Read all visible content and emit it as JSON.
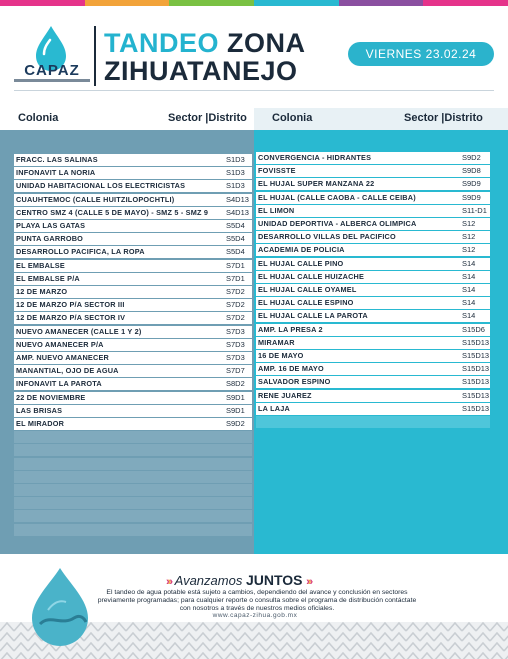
{
  "header": {
    "logo_text": "CAPAZ",
    "title_part1": "TANDEO",
    "title_part2": "ZONA",
    "title_line2": "ZIHUATANEJO",
    "date": "VIERNES 23.02.24"
  },
  "table": {
    "left_headers": {
      "colonia": "Colonia",
      "sector": "Sector |Distrito"
    },
    "right_headers": {
      "colonia": "Colonia",
      "sector": "Sector |Distrito"
    },
    "left_rows": [
      {
        "colonia": "FRACC. LAS SALINAS",
        "sector": "S1D3"
      },
      {
        "colonia": "INFONAVIT LA NORIA",
        "sector": "S1D3"
      },
      {
        "colonia": "UNIDAD HABITACIONAL LOS ELECTRICISTAS",
        "sector": "S1D3"
      },
      {
        "colonia": "CUAUHTEMOC (CALLE HUITZILOPOCHTLI)",
        "sector": "S4D13"
      },
      {
        "colonia": "CENTRO SMZ 4 (CALLE 5 DE MAYO) - SMZ 5 - SMZ 9",
        "sector": "S4D13"
      },
      {
        "colonia": "PLAYA LAS GATAS",
        "sector": "S5D4"
      },
      {
        "colonia": "PUNTA GARROBO",
        "sector": "S5D4"
      },
      {
        "colonia": "DESARROLLO PACIFICA, LA ROPA",
        "sector": "S5D4"
      },
      {
        "colonia": "EL EMBALSE",
        "sector": "S7D1"
      },
      {
        "colonia": "EL EMBALSE P/A",
        "sector": "S7D1"
      },
      {
        "colonia": "12 DE MARZO",
        "sector": "S7D2"
      },
      {
        "colonia": "12 DE MARZO P/A SECTOR III",
        "sector": "S7D2"
      },
      {
        "colonia": "12 DE MARZO P/A SECTOR IV",
        "sector": "S7D2"
      },
      {
        "colonia": "NUEVO AMANECER (CALLE 1 Y 2)",
        "sector": "S7D3"
      },
      {
        "colonia": "NUEVO AMANECER P/A",
        "sector": "S7D3"
      },
      {
        "colonia": "AMP. NUEVO AMANECER",
        "sector": "S7D3"
      },
      {
        "colonia": "MANANTIAL, OJO DE AGUA",
        "sector": "S7D7"
      },
      {
        "colonia": "INFONAVIT LA PAROTA",
        "sector": "S8D2"
      },
      {
        "colonia": "22 DE NOVIEMBRE",
        "sector": "S9D1"
      },
      {
        "colonia": "LAS BRISAS",
        "sector": "S9D1"
      },
      {
        "colonia": "EL MIRADOR",
        "sector": "S9D2"
      }
    ],
    "right_rows": [
      {
        "colonia": "CONVERGENCIA - HIDRANTES",
        "sector": "S9D2"
      },
      {
        "colonia": "FOVISSTE",
        "sector": "S9D8"
      },
      {
        "colonia": "EL HUJAL SUPER MANZANA 22",
        "sector": "S9D9"
      },
      {
        "colonia": "EL HUJAL (CALLE CAOBA - CALLE CEIBA)",
        "sector": "S9D9"
      },
      {
        "colonia": "EL LIMON",
        "sector": "S11-D1"
      },
      {
        "colonia": "UNIDAD DEPORTIVA - ALBERCA OLIMPICA",
        "sector": "S12"
      },
      {
        "colonia": "DESARROLLO VILLAS DEL PACIFICO",
        "sector": "S12"
      },
      {
        "colonia": "ACADEMIA DE POLICIA",
        "sector": "S12"
      },
      {
        "colonia": "EL HUJAL CALLE PINO",
        "sector": "S14"
      },
      {
        "colonia": "EL HUJAL CALLE HUIZACHE",
        "sector": "S14"
      },
      {
        "colonia": "EL HUJAL CALLE OYAMEL",
        "sector": "S14"
      },
      {
        "colonia": "EL HUJAL CALLE ESPINO",
        "sector": "S14"
      },
      {
        "colonia": "EL HUJAL CALLE LA PAROTA",
        "sector": "S14"
      },
      {
        "colonia": "AMP. LA PRESA 2",
        "sector": "S15D6"
      },
      {
        "colonia": "MIRAMAR",
        "sector": "S15D13"
      },
      {
        "colonia": "16 DE MAYO",
        "sector": "S15D13"
      },
      {
        "colonia": "AMP. 16 DE MAYO",
        "sector": "S15D13"
      },
      {
        "colonia": "SALVADOR ESPINO",
        "sector": "S15D13"
      },
      {
        "colonia": "RENE JUAREZ",
        "sector": "S15D13"
      },
      {
        "colonia": "LA LAJA",
        "sector": "S15D13"
      }
    ]
  },
  "footer": {
    "slogan_part1": "Avanzamos",
    "slogan_part2": "JUNTOS",
    "disclaimer": "El tandeo de agua potable está sujeto a cambios, dependiendo del avance y conclusión en sectores previamente programadas; para cualquier reporte o consulta sobre el programa de distribución contáctate con nosotros a través de nuestros medios oficiales.",
    "website": "www.capaz-zihua.gob.mx"
  },
  "colors": {
    "accent_cyan": "#29b9d1",
    "left_panel": "#6f9eb3",
    "dark_navy": "#1b2a3a",
    "topbar": [
      "#e5338a",
      "#f2a33a",
      "#7ac143",
      "#29b9d1",
      "#8a4fa0",
      "#e5338a"
    ]
  },
  "icons": {
    "logo": "water-drop-icon",
    "footer_drop": "water-drop-icon",
    "chevrons": "chevron-right-icon"
  }
}
